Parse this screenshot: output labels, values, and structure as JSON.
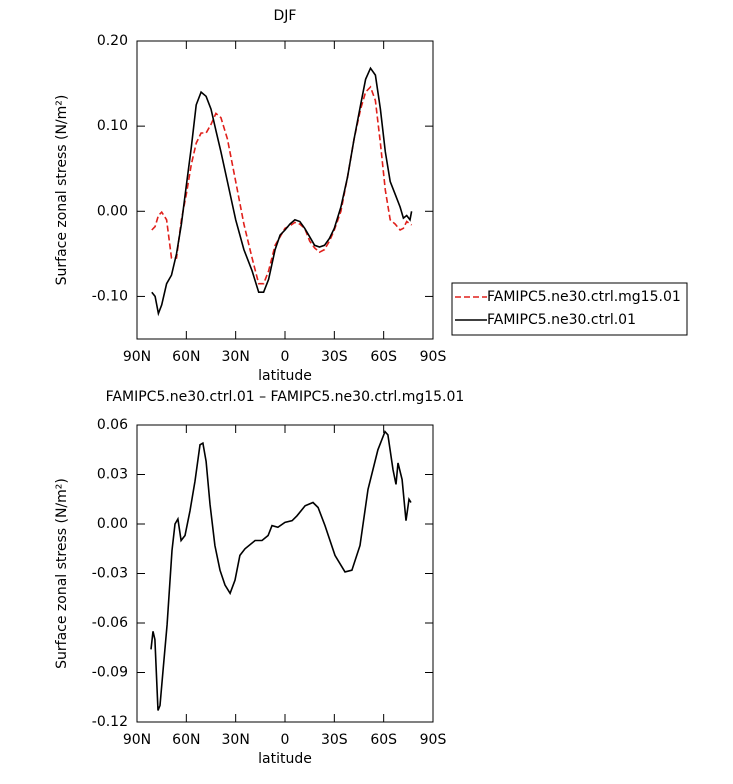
{
  "chart_data": [
    {
      "type": "line",
      "title": "DJF",
      "xlabel": "latitude",
      "ylabel": "Surface zonal stress (N/m²)",
      "x": [
        81,
        79,
        77,
        75,
        72,
        69,
        66,
        63,
        60,
        57,
        54,
        51,
        48,
        45,
        42,
        39,
        35,
        30,
        25,
        20,
        16,
        13,
        10,
        6,
        3,
        0,
        -3,
        -6,
        -9,
        -12,
        -15,
        -18,
        -21,
        -24,
        -27,
        -30,
        -34,
        -38,
        -42,
        -46,
        -49,
        -52,
        -55,
        -58,
        -61,
        -64,
        -67,
        -70,
        -72,
        -74,
        -76,
        -77
      ],
      "series": [
        {
          "name": "FAMIPC5.ne30.ctrl.mg15.01",
          "color": "#e0201b",
          "dashed": true,
          "values": [
            -0.022,
            -0.018,
            -0.005,
            -0.001,
            -0.01,
            -0.055,
            -0.055,
            -0.01,
            0.02,
            0.055,
            0.08,
            0.092,
            0.092,
            0.102,
            0.115,
            0.11,
            0.085,
            0.035,
            -0.015,
            -0.055,
            -0.085,
            -0.085,
            -0.07,
            -0.04,
            -0.03,
            -0.02,
            -0.017,
            -0.013,
            -0.015,
            -0.02,
            -0.035,
            -0.043,
            -0.048,
            -0.045,
            -0.035,
            -0.022,
            0.0,
            0.04,
            0.085,
            0.12,
            0.14,
            0.146,
            0.13,
            0.08,
            0.025,
            -0.01,
            -0.015,
            -0.022,
            -0.02,
            -0.012,
            -0.015,
            -0.016
          ]
        },
        {
          "name": "FAMIPC5.ne30.ctrl.01",
          "color": "#000000",
          "dashed": false,
          "values": [
            -0.095,
            -0.1,
            -0.12,
            -0.11,
            -0.085,
            -0.075,
            -0.05,
            -0.015,
            0.03,
            0.075,
            0.125,
            0.14,
            0.135,
            0.12,
            0.095,
            0.07,
            0.035,
            -0.01,
            -0.045,
            -0.07,
            -0.095,
            -0.095,
            -0.08,
            -0.045,
            -0.028,
            -0.022,
            -0.015,
            -0.01,
            -0.012,
            -0.02,
            -0.03,
            -0.04,
            -0.042,
            -0.04,
            -0.032,
            -0.02,
            0.005,
            0.04,
            0.085,
            0.125,
            0.155,
            0.168,
            0.16,
            0.12,
            0.07,
            0.035,
            0.02,
            0.005,
            -0.008,
            -0.005,
            -0.01,
            0.0
          ]
        }
      ],
      "xlim": [
        90,
        -90
      ],
      "xticks": [
        {
          "value": 90,
          "label": "90N"
        },
        {
          "value": 60,
          "label": "60N"
        },
        {
          "value": 30,
          "label": "30N"
        },
        0,
        {
          "value": -30,
          "label": "30S"
        },
        {
          "value": -60,
          "label": "60S"
        },
        {
          "value": -90,
          "label": "90S"
        }
      ],
      "ylim": [
        -0.15,
        0.2
      ],
      "yticks": [
        {
          "value": 0.2,
          "label": "0.20"
        },
        {
          "value": 0.1,
          "label": "0.10"
        },
        {
          "value": 0,
          "label": "0.00"
        },
        {
          "value": -0.1,
          "label": "-0.10"
        }
      ],
      "legend": "right"
    },
    {
      "type": "line",
      "title": "FAMIPC5.ne30.ctrl.01 – FAMIPC5.ne30.ctrl.mg15.01",
      "xlabel": "latitude",
      "ylabel": "Surface zonal stress (N/m²)",
      "x": [
        81.5,
        80.3,
        79.1,
        77.2,
        76.0,
        74.2,
        71.7,
        68.7,
        66.9,
        65.1,
        63.2,
        60.8,
        57.8,
        54.7,
        51.7,
        49.9,
        48.0,
        45.6,
        42.6,
        39.5,
        36.5,
        33.4,
        30.4,
        27.4,
        24.3,
        18.2,
        14.0,
        10.3,
        7.9,
        4.3,
        0,
        -4.3,
        -7.3,
        -12.2,
        -17.0,
        -20.1,
        -24.3,
        -30.4,
        -36.5,
        -40.7,
        -45.6,
        -50.5,
        -56.5,
        -60.8,
        -62.6,
        -65.7,
        -67.5,
        -68.7,
        -71.2,
        -73.6,
        -75.4,
        -76.6
      ],
      "series": [
        {
          "color": "#000000",
          "dashed": false,
          "values": [
            -0.076,
            -0.065,
            -0.07,
            -0.113,
            -0.11,
            -0.089,
            -0.061,
            -0.016,
            0.0,
            0.003,
            -0.01,
            -0.007,
            0.008,
            0.026,
            0.048,
            0.049,
            0.038,
            0.012,
            -0.013,
            -0.028,
            -0.037,
            -0.042,
            -0.034,
            -0.019,
            -0.015,
            -0.01,
            -0.01,
            -0.007,
            -0.001,
            -0.002,
            0.001,
            0.002,
            0.005,
            0.011,
            0.013,
            0.01,
            -0.001,
            -0.019,
            -0.029,
            -0.028,
            -0.013,
            0.021,
            0.045,
            0.056,
            0.054,
            0.033,
            0.024,
            0.037,
            0.027,
            0.002,
            0.015,
            0.013
          ]
        }
      ],
      "xlim": [
        90,
        -90
      ],
      "xticks": [
        {
          "value": 90,
          "label": "90N"
        },
        {
          "value": 60,
          "label": "60N"
        },
        {
          "value": 30,
          "label": "30N"
        },
        0,
        {
          "value": -30,
          "label": "30S"
        },
        {
          "value": -60,
          "label": "60S"
        },
        {
          "value": -90,
          "label": "90S"
        }
      ],
      "ylim": [
        -0.12,
        0.06
      ],
      "yticks": [
        0.06,
        0.03,
        {
          "value": 0,
          "label": "0.00"
        },
        -0.03,
        -0.06,
        -0.09,
        -0.12
      ]
    }
  ]
}
